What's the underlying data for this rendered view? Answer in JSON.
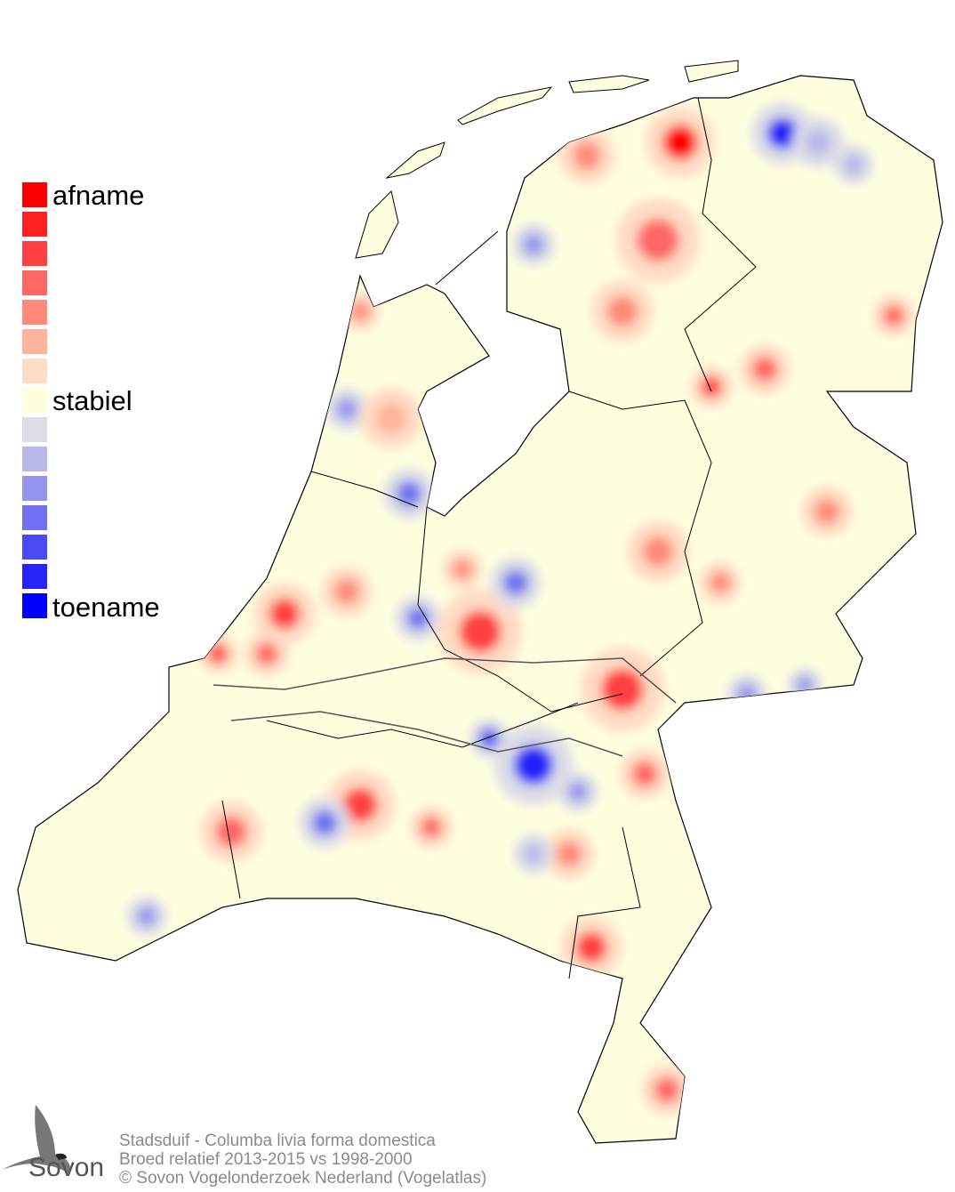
{
  "legend": {
    "label_top": "afname",
    "label_mid": "stabiel",
    "label_bottom": "toename",
    "colors": [
      "#ff0000",
      "#ff2020",
      "#ff4040",
      "#ff6666",
      "#ff8a7a",
      "#ffb39e",
      "#ffdcc4",
      "#ffffe0",
      "#dcdce8",
      "#b8b8ea",
      "#9494ee",
      "#7070f0",
      "#4a4af4",
      "#2424f8",
      "#0000ff"
    ]
  },
  "map": {
    "region": "Netherlands",
    "base_color": "#ffffe0",
    "decrease_color": "#ff0000",
    "increase_color": "#0000ff"
  },
  "footer": {
    "line1": "Stadsduif - Columba livia forma domestica",
    "line2": "Broed relatief 2013-2015 vs 1998-2000",
    "line3": "© Sovon Vogelonderzoek Nederland (Vogelatlas)"
  },
  "logo": {
    "text": "Sovon"
  }
}
